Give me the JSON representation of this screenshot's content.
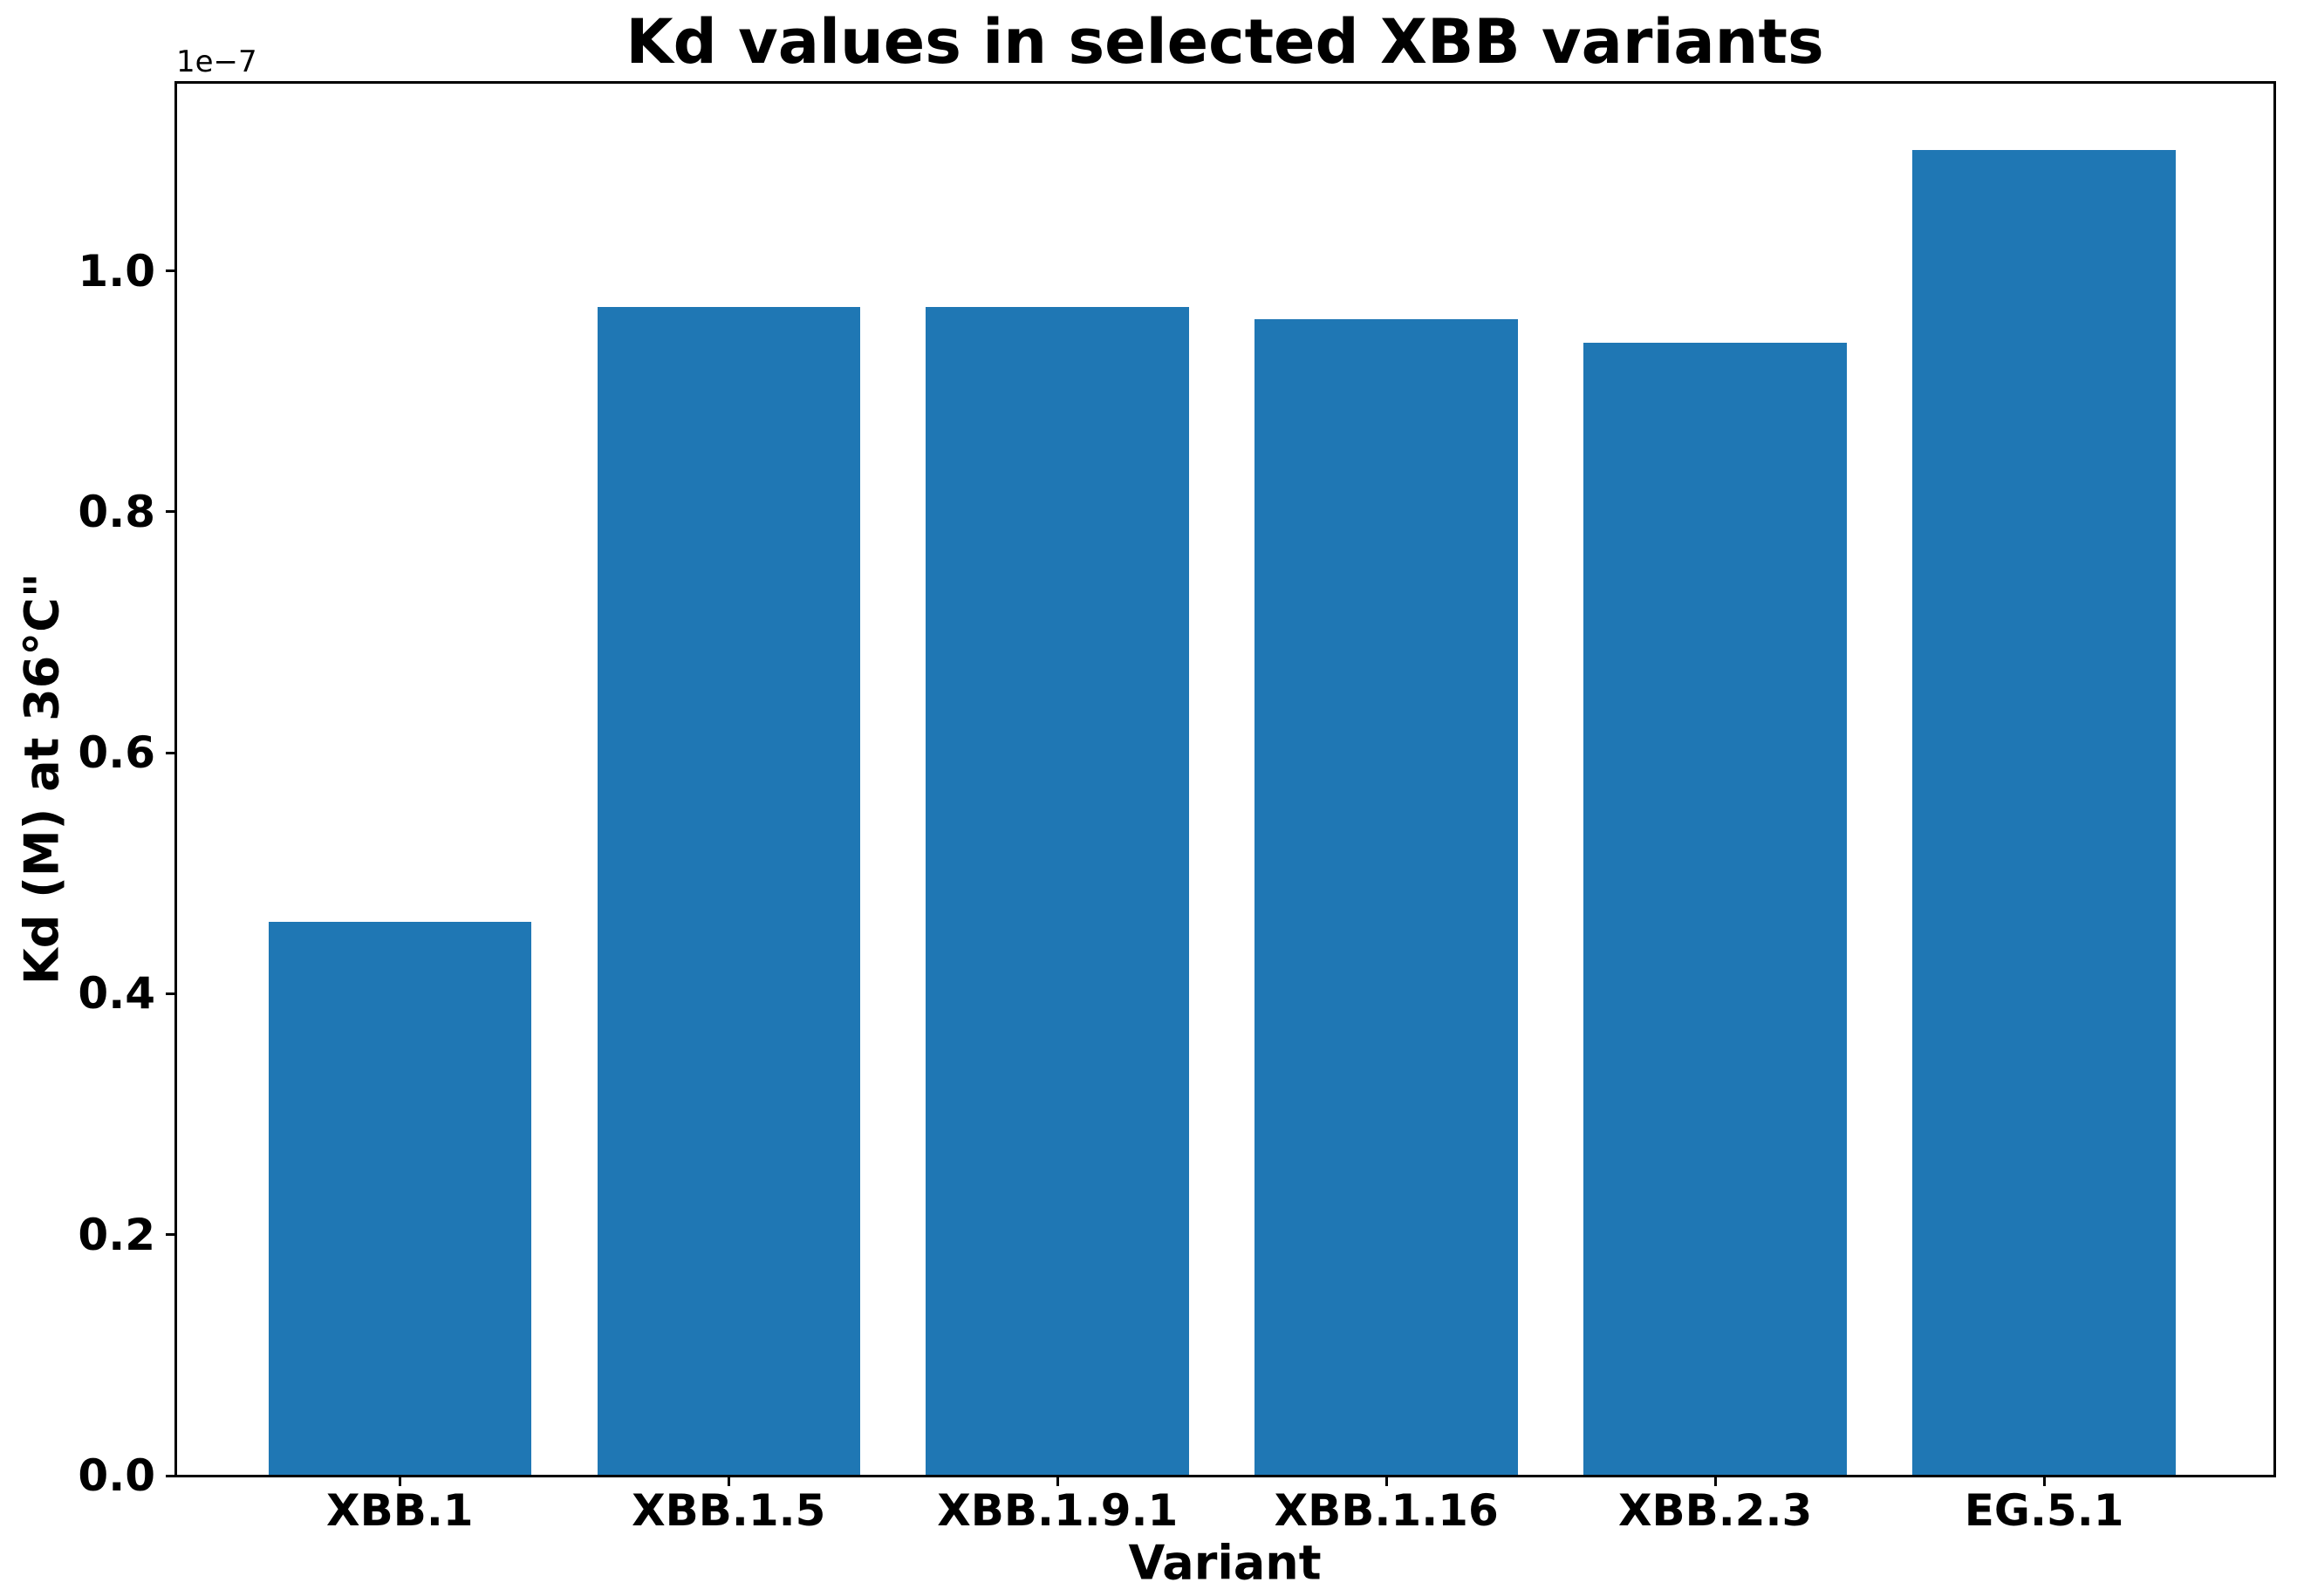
{
  "chart_data": {
    "type": "bar",
    "title": "Kd values in selected XBB variants",
    "xlabel": "Variant",
    "ylabel": "Kd (M) at 36°C\"",
    "axis_offset_text": "1e−7",
    "categories": [
      "XBB.1",
      "XBB.1.5",
      "XBB.1.9.1",
      "XBB.1.16",
      "XBB.2.3",
      "EG.5.1"
    ],
    "values_1e7": [
      0.46,
      0.97,
      0.97,
      0.96,
      0.94,
      1.1
    ],
    "values_molar": [
      4.6e-08,
      9.7e-08,
      9.7e-08,
      9.6e-08,
      9.4e-08,
      1.1e-07
    ],
    "ytick_labels": [
      "0.0",
      "0.2",
      "0.4",
      "0.6",
      "0.8",
      "1.0"
    ],
    "ylim_1e7": [
      0,
      1.156
    ],
    "xlim": [
      -0.68,
      5.7
    ],
    "bar_width": 0.8,
    "bar_color": "#1f77b4",
    "grid": false,
    "legend": null
  }
}
